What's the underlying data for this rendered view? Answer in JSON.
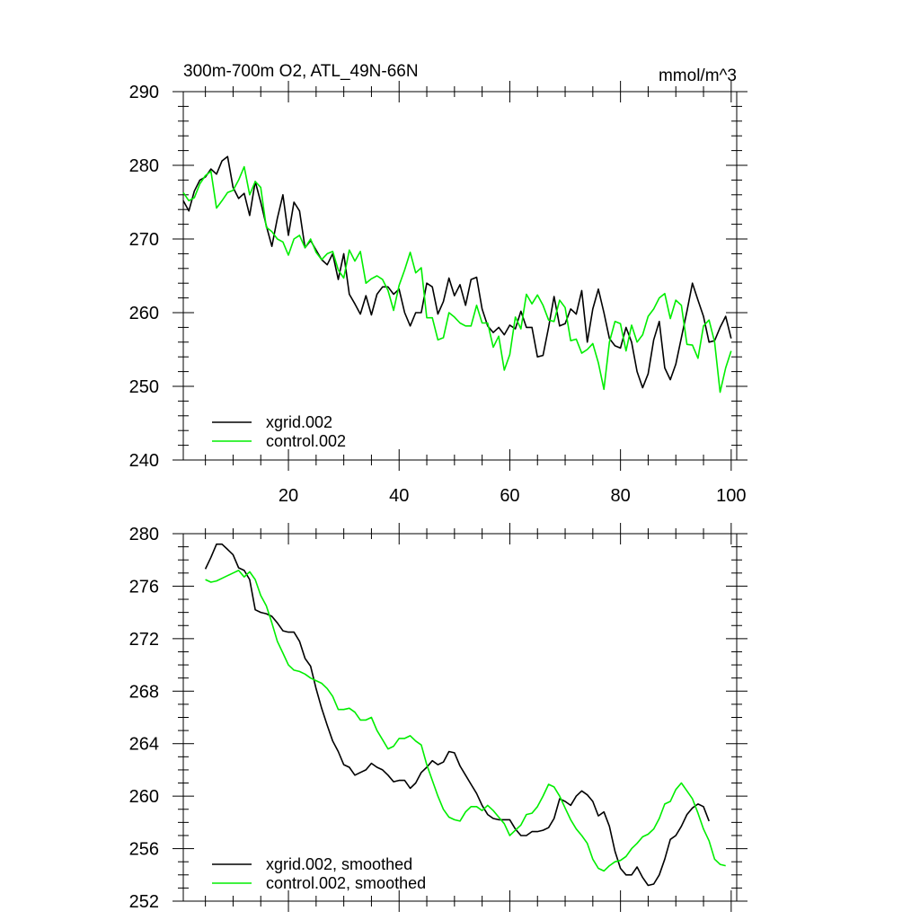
{
  "colors": {
    "xgrid": "#000000",
    "control": "#00ee00"
  },
  "chart_data": [
    {
      "type": "line",
      "title": "300m-700m O2, ATL_49N-66N",
      "units": "mmol/m^3",
      "xlim": [
        1,
        101
      ],
      "ylim": [
        240,
        290
      ],
      "x_ticks": [
        20,
        40,
        60,
        80,
        100
      ],
      "y_ticks": [
        240,
        250,
        260,
        270,
        280,
        290
      ],
      "legend_position": "lower-left",
      "series": [
        {
          "name": "xgrid.002",
          "color": "#000000",
          "values": [
            275.2,
            273.8,
            276.5,
            278.0,
            278.4,
            279.5,
            278.8,
            280.6,
            281.2,
            277.0,
            275.5,
            276.2,
            273.2,
            277.8,
            275.0,
            271.8,
            269.0,
            272.8,
            276.0,
            270.5,
            275.0,
            273.8,
            268.8,
            269.8,
            268.5,
            267.2,
            266.5,
            268.0,
            264.5,
            268.0,
            262.5,
            261.2,
            259.8,
            262.3,
            259.7,
            262.5,
            263.5,
            263.5,
            262.5,
            263.2,
            260.0,
            258.2,
            260.0,
            260.0,
            264.0,
            263.5,
            259.8,
            261.5,
            264.7,
            262.3,
            263.8,
            261.0,
            264.5,
            264.8,
            260.5,
            258.2,
            257.3,
            258.0,
            257.0,
            258.3,
            257.8,
            260.2,
            258.0,
            258.0,
            254.0,
            254.2,
            258.0,
            262.2,
            258.2,
            258.5,
            260.5,
            259.8,
            263.0,
            256.0,
            260.5,
            263.2,
            260.0,
            256.5,
            255.5,
            255.2,
            258.0,
            256.0,
            252.0,
            249.8,
            251.7,
            256.3,
            258.8,
            252.5,
            250.9,
            253.0,
            256.6,
            260.2,
            264.0,
            261.7,
            259.5,
            256.0,
            256.2,
            258.0,
            259.5,
            256.5
          ]
        },
        {
          "name": "control.002",
          "color": "#00ee00",
          "values": [
            276.3,
            275.2,
            275.6,
            277.5,
            278.6,
            279.2,
            274.2,
            275.2,
            276.3,
            276.6,
            278.0,
            279.8,
            276.0,
            277.8,
            277.0,
            271.6,
            271.0,
            270.0,
            269.6,
            267.8,
            270.0,
            270.5,
            268.8,
            270.0,
            268.2,
            267.2,
            268.0,
            268.3,
            265.8,
            264.7,
            268.5,
            267.0,
            268.3,
            264.0,
            264.6,
            265.0,
            264.5,
            263.0,
            260.3,
            263.7,
            265.8,
            268.2,
            265.4,
            266.1,
            259.3,
            259.3,
            256.3,
            256.6,
            260.0,
            259.4,
            258.6,
            258.2,
            258.2,
            261.0,
            258.6,
            258.6,
            255.3,
            256.8,
            252.2,
            254.3,
            259.4,
            257.8,
            262.5,
            261.2,
            262.4,
            261.0,
            259.0,
            258.8,
            261.7,
            260.7,
            256.2,
            256.4,
            254.5,
            255.0,
            255.8,
            253.2,
            249.6,
            256.0,
            258.8,
            258.5,
            254.8,
            258.3,
            256.0,
            257.0,
            259.5,
            260.5,
            262.0,
            262.6,
            259.2,
            261.7,
            261.0,
            255.7,
            255.6,
            253.8,
            258.2,
            259.0,
            256.0,
            249.2,
            252.5,
            254.8
          ]
        }
      ]
    },
    {
      "type": "line",
      "xlim": [
        1,
        101
      ],
      "ylim": [
        252,
        280
      ],
      "x_ticks": [
        20,
        40,
        60,
        80,
        100
      ],
      "y_ticks": [
        252,
        256,
        260,
        264,
        268,
        272,
        276,
        280
      ],
      "legend_position": "lower-left",
      "series": [
        {
          "name": "xgrid.002, smoothed",
          "color": "#000000",
          "x_start": 5,
          "values": [
            277.3,
            278.2,
            279.2,
            279.2,
            278.8,
            278.4,
            277.4,
            277.2,
            276.5,
            274.2,
            274.0,
            273.9,
            273.7,
            273.2,
            272.6,
            272.5,
            272.5,
            271.8,
            270.5,
            269.9,
            268.2,
            266.7,
            265.4,
            264.2,
            263.4,
            262.4,
            262.2,
            261.6,
            261.8,
            262.0,
            262.5,
            262.2,
            262.0,
            261.6,
            261.1,
            261.2,
            261.2,
            260.6,
            261.0,
            261.8,
            262.2,
            262.7,
            262.4,
            262.6,
            263.4,
            263.3,
            262.3,
            261.6,
            260.9,
            260.2,
            259.3,
            258.6,
            258.3,
            258.2,
            258.2,
            258.2,
            257.5,
            257.0,
            257.0,
            257.3,
            257.3,
            257.4,
            257.6,
            258.3,
            259.8,
            259.6,
            259.3,
            260.0,
            260.4,
            260.1,
            259.6,
            258.5,
            258.8,
            257.7,
            255.8,
            254.5,
            254.0,
            254.0,
            254.6,
            253.8,
            253.2,
            253.3,
            254.0,
            255.2,
            256.7,
            257.0,
            257.7,
            258.6,
            259.1,
            259.4,
            259.2,
            258.1
          ]
        },
        {
          "name": "control.002, smoothed",
          "color": "#00ee00",
          "x_start": 5,
          "values": [
            276.5,
            276.3,
            276.4,
            276.6,
            276.8,
            277.0,
            277.2,
            276.7,
            277.1,
            276.5,
            275.3,
            274.5,
            273.2,
            271.8,
            270.9,
            270.0,
            269.6,
            269.5,
            269.3,
            269.0,
            268.8,
            268.6,
            268.2,
            267.6,
            266.6,
            266.6,
            266.7,
            266.4,
            265.8,
            265.8,
            266.0,
            265.0,
            264.3,
            263.6,
            263.8,
            264.4,
            264.4,
            264.6,
            264.2,
            263.9,
            262.4,
            261.2,
            260.0,
            259.0,
            258.4,
            258.2,
            258.1,
            258.8,
            259.2,
            259.2,
            258.9,
            259.3,
            258.9,
            258.4,
            257.9,
            257.0,
            257.4,
            257.8,
            258.6,
            258.7,
            259.2,
            260.0,
            260.9,
            260.7,
            260.0,
            259.1,
            258.2,
            257.5,
            257.0,
            256.4,
            255.2,
            254.5,
            254.3,
            254.7,
            255.0,
            255.1,
            255.4,
            256.0,
            256.4,
            256.9,
            257.1,
            257.5,
            258.3,
            259.4,
            259.6,
            260.5,
            261.0,
            260.4,
            259.8,
            258.7,
            257.5,
            256.6,
            255.2,
            254.8,
            254.7
          ]
        }
      ]
    }
  ]
}
